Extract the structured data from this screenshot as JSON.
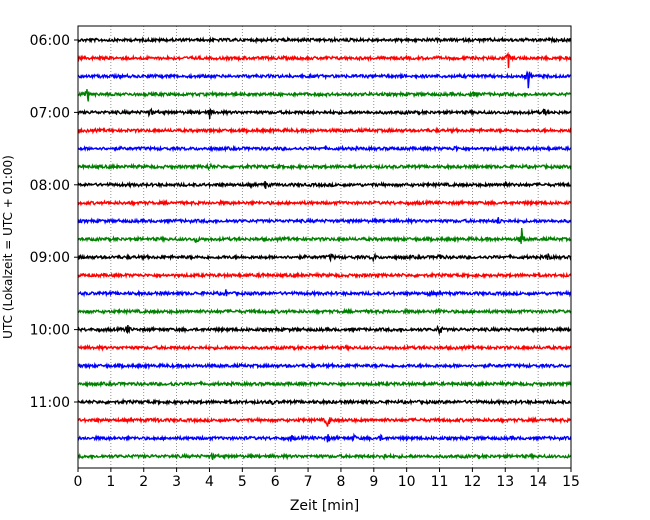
{
  "chart_data": {
    "type": "line",
    "title": "",
    "xlabel": "Zeit  [min]",
    "ylabel": "UTC (Lokalzeit = UTC + 01:00)",
    "xlim": [
      0,
      15
    ],
    "x_ticks": [
      0,
      1,
      2,
      3,
      4,
      5,
      6,
      7,
      8,
      9,
      10,
      11,
      12,
      13,
      14,
      15
    ],
    "x_tick_labels": [
      "0",
      "1",
      "2",
      "3",
      "4",
      "5",
      "6",
      "7",
      "8",
      "9",
      "10",
      "11",
      "12",
      "13",
      "14",
      "15"
    ],
    "y_tick_labels": [
      "06:00",
      "07:00",
      "08:00",
      "09:00",
      "10:00",
      "11:00"
    ],
    "y_tick_trace_index": [
      0,
      4,
      8,
      12,
      16,
      20
    ],
    "grid": {
      "vertical": true,
      "style": "dotted"
    },
    "colors": [
      "#000000",
      "#ff0000",
      "#0000ff",
      "#008000"
    ],
    "traces": [
      {
        "start": "06:00",
        "color": "#000000",
        "events": []
      },
      {
        "start": "06:15",
        "color": "#ff0000",
        "events": [
          [
            13.1,
            9
          ]
        ]
      },
      {
        "start": "06:30",
        "color": "#0000ff",
        "events": [
          [
            13.7,
            12
          ]
        ]
      },
      {
        "start": "06:45",
        "color": "#008000",
        "events": [
          [
            0.3,
            9
          ],
          [
            12.0,
            4
          ]
        ]
      },
      {
        "start": "07:00",
        "color": "#000000",
        "events": [
          [
            2.2,
            5
          ],
          [
            4.0,
            6
          ],
          [
            14.2,
            4
          ]
        ]
      },
      {
        "start": "07:15",
        "color": "#ff0000",
        "events": []
      },
      {
        "start": "07:30",
        "color": "#0000ff",
        "events": [
          [
            11.5,
            3
          ]
        ]
      },
      {
        "start": "07:45",
        "color": "#008000",
        "events": [
          [
            4.0,
            4
          ]
        ]
      },
      {
        "start": "08:00",
        "color": "#000000",
        "events": [
          [
            5.7,
            4
          ],
          [
            13.0,
            3
          ]
        ]
      },
      {
        "start": "08:15",
        "color": "#ff0000",
        "events": []
      },
      {
        "start": "08:30",
        "color": "#0000ff",
        "events": [
          [
            12.8,
            4
          ]
        ]
      },
      {
        "start": "08:45",
        "color": "#008000",
        "events": [
          [
            3.6,
            4
          ],
          [
            13.5,
            11
          ]
        ]
      },
      {
        "start": "09:00",
        "color": "#000000",
        "events": [
          [
            7.7,
            4
          ],
          [
            9.0,
            4
          ],
          [
            11.0,
            4
          ],
          [
            14.3,
            4
          ]
        ]
      },
      {
        "start": "09:15",
        "color": "#ff0000",
        "events": [
          [
            5.6,
            3
          ]
        ]
      },
      {
        "start": "09:30",
        "color": "#0000ff",
        "events": [
          [
            4.5,
            3
          ],
          [
            10.7,
            3
          ]
        ]
      },
      {
        "start": "09:45",
        "color": "#008000",
        "events": [
          [
            11.0,
            3
          ]
        ]
      },
      {
        "start": "10:00",
        "color": "#000000",
        "events": [
          [
            1.5,
            6
          ],
          [
            11.0,
            9
          ]
        ]
      },
      {
        "start": "10:15",
        "color": "#ff0000",
        "events": []
      },
      {
        "start": "10:30",
        "color": "#0000ff",
        "events": []
      },
      {
        "start": "10:45",
        "color": "#008000",
        "events": [
          [
            2.9,
            3
          ]
        ]
      },
      {
        "start": "11:00",
        "color": "#000000",
        "events": [
          [
            5.9,
            3
          ]
        ]
      },
      {
        "start": "11:15",
        "color": "#ff0000",
        "events": [
          [
            7.6,
            11
          ],
          [
            2.4,
            3
          ]
        ]
      },
      {
        "start": "11:30",
        "color": "#0000ff",
        "events": [
          [
            6.5,
            4
          ],
          [
            7.6,
            4
          ],
          [
            8.4,
            3
          ],
          [
            9.2,
            3
          ]
        ]
      },
      {
        "start": "11:45",
        "color": "#008000",
        "events": [
          [
            4.1,
            3
          ],
          [
            9.3,
            3
          ]
        ]
      }
    ]
  }
}
